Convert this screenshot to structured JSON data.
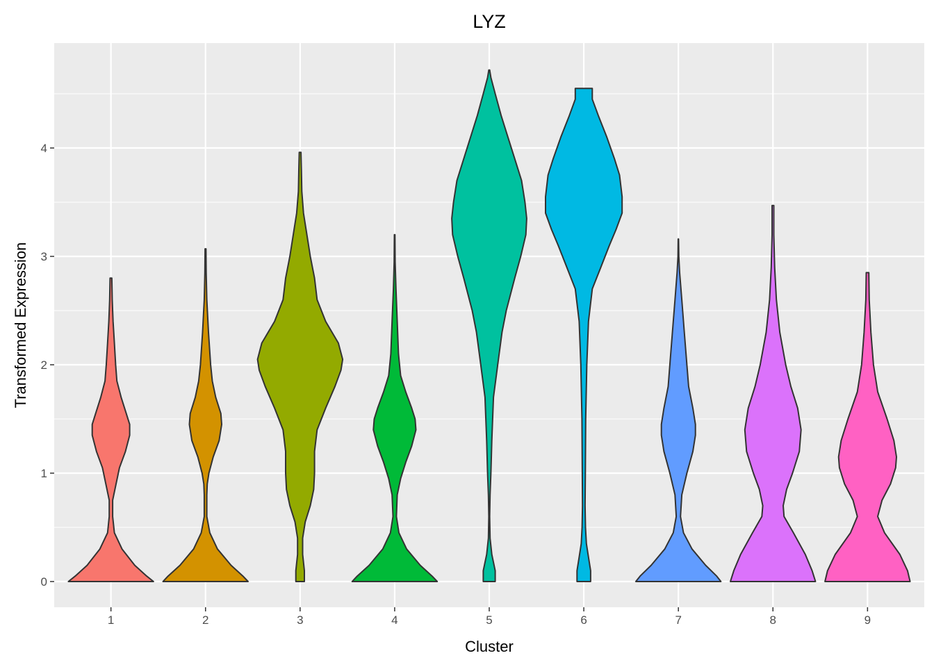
{
  "chart_data": {
    "type": "violin",
    "title": "LYZ",
    "xlabel": "Cluster",
    "ylabel": "Transformed Expression",
    "categories": [
      "1",
      "2",
      "3",
      "4",
      "5",
      "6",
      "7",
      "8",
      "9"
    ],
    "yticks": [
      0,
      1,
      2,
      3,
      4
    ],
    "ylim": [
      -0.24,
      5.0
    ],
    "grid": true,
    "legend": "none",
    "colors": [
      "#F8766D",
      "#D39200",
      "#93AA00",
      "#00BA38",
      "#00C19F",
      "#00B9E3",
      "#619CFF",
      "#DB72FB",
      "#FF61C3"
    ],
    "panel_background": "#EBEBEB",
    "gridline_color": "#FFFFFF",
    "outline_color": "#333333",
    "violins": [
      {
        "category": "1",
        "min": 0,
        "max": 2.8,
        "profile": [
          [
            0,
            0.5
          ],
          [
            0.05,
            0.42
          ],
          [
            0.15,
            0.28
          ],
          [
            0.3,
            0.13
          ],
          [
            0.45,
            0.04
          ],
          [
            0.6,
            0.02
          ],
          [
            0.75,
            0.02
          ],
          [
            0.9,
            0.06
          ],
          [
            1.05,
            0.1
          ],
          [
            1.2,
            0.17
          ],
          [
            1.35,
            0.22
          ],
          [
            1.45,
            0.22
          ],
          [
            1.55,
            0.18
          ],
          [
            1.7,
            0.12
          ],
          [
            1.85,
            0.07
          ],
          [
            2.0,
            0.055
          ],
          [
            2.2,
            0.04
          ],
          [
            2.4,
            0.025
          ],
          [
            2.6,
            0.015
          ],
          [
            2.8,
            0.01
          ]
        ]
      },
      {
        "category": "2",
        "min": 0,
        "max": 3.07,
        "profile": [
          [
            0,
            0.5
          ],
          [
            0.05,
            0.44
          ],
          [
            0.15,
            0.3
          ],
          [
            0.3,
            0.14
          ],
          [
            0.45,
            0.05
          ],
          [
            0.6,
            0.015
          ],
          [
            0.8,
            0.015
          ],
          [
            0.9,
            0.02
          ],
          [
            1.0,
            0.04
          ],
          [
            1.15,
            0.09
          ],
          [
            1.3,
            0.16
          ],
          [
            1.45,
            0.19
          ],
          [
            1.55,
            0.18
          ],
          [
            1.7,
            0.12
          ],
          [
            1.85,
            0.08
          ],
          [
            2.0,
            0.06
          ],
          [
            2.3,
            0.035
          ],
          [
            2.6,
            0.015
          ],
          [
            2.85,
            0.008
          ],
          [
            3.07,
            0.005
          ]
        ]
      },
      {
        "category": "3",
        "min": 0,
        "max": 3.96,
        "profile": [
          [
            0,
            0.05
          ],
          [
            0.1,
            0.05
          ],
          [
            0.25,
            0.03
          ],
          [
            0.4,
            0.03
          ],
          [
            0.55,
            0.06
          ],
          [
            0.7,
            0.12
          ],
          [
            0.85,
            0.16
          ],
          [
            1.0,
            0.17
          ],
          [
            1.2,
            0.17
          ],
          [
            1.4,
            0.2
          ],
          [
            1.6,
            0.3
          ],
          [
            1.8,
            0.41
          ],
          [
            1.95,
            0.48
          ],
          [
            2.05,
            0.5
          ],
          [
            2.2,
            0.45
          ],
          [
            2.4,
            0.3
          ],
          [
            2.6,
            0.2
          ],
          [
            2.8,
            0.17
          ],
          [
            3.0,
            0.12
          ],
          [
            3.2,
            0.08
          ],
          [
            3.4,
            0.04
          ],
          [
            3.6,
            0.02
          ],
          [
            3.8,
            0.015
          ],
          [
            3.96,
            0.01
          ]
        ]
      },
      {
        "category": "4",
        "min": 0,
        "max": 3.2,
        "profile": [
          [
            0,
            0.5
          ],
          [
            0.05,
            0.44
          ],
          [
            0.15,
            0.3
          ],
          [
            0.3,
            0.14
          ],
          [
            0.45,
            0.05
          ],
          [
            0.6,
            0.02
          ],
          [
            0.8,
            0.03
          ],
          [
            0.95,
            0.07
          ],
          [
            1.1,
            0.13
          ],
          [
            1.25,
            0.2
          ],
          [
            1.4,
            0.25
          ],
          [
            1.5,
            0.24
          ],
          [
            1.6,
            0.2
          ],
          [
            1.75,
            0.13
          ],
          [
            1.9,
            0.07
          ],
          [
            2.1,
            0.045
          ],
          [
            2.4,
            0.03
          ],
          [
            2.7,
            0.015
          ],
          [
            2.95,
            0.006
          ],
          [
            3.2,
            0.003
          ]
        ]
      },
      {
        "category": "5",
        "min": 0,
        "max": 4.72,
        "profile": [
          [
            0,
            0.07
          ],
          [
            0.1,
            0.07
          ],
          [
            0.25,
            0.03
          ],
          [
            0.4,
            0.01
          ],
          [
            0.6,
            0.005
          ],
          [
            0.8,
            0.01
          ],
          [
            1.0,
            0.02
          ],
          [
            1.3,
            0.03
          ],
          [
            1.5,
            0.04
          ],
          [
            1.7,
            0.05
          ],
          [
            2.0,
            0.1
          ],
          [
            2.3,
            0.15
          ],
          [
            2.5,
            0.2
          ],
          [
            2.8,
            0.3
          ],
          [
            3.0,
            0.37
          ],
          [
            3.2,
            0.43
          ],
          [
            3.35,
            0.44
          ],
          [
            3.5,
            0.42
          ],
          [
            3.7,
            0.38
          ],
          [
            3.9,
            0.3
          ],
          [
            4.1,
            0.22
          ],
          [
            4.3,
            0.14
          ],
          [
            4.5,
            0.07
          ],
          [
            4.65,
            0.02
          ],
          [
            4.72,
            0.005
          ]
        ]
      },
      {
        "category": "6",
        "min": 0,
        "max": 4.55,
        "profile": [
          [
            0,
            0.08
          ],
          [
            0.1,
            0.08
          ],
          [
            0.25,
            0.05
          ],
          [
            0.35,
            0.03
          ],
          [
            0.5,
            0.02
          ],
          [
            0.7,
            0.015
          ],
          [
            1.0,
            0.018
          ],
          [
            1.5,
            0.022
          ],
          [
            2.0,
            0.035
          ],
          [
            2.4,
            0.055
          ],
          [
            2.7,
            0.1
          ],
          [
            2.9,
            0.2
          ],
          [
            3.1,
            0.3
          ],
          [
            3.25,
            0.38
          ],
          [
            3.4,
            0.45
          ],
          [
            3.55,
            0.45
          ],
          [
            3.75,
            0.42
          ],
          [
            3.9,
            0.36
          ],
          [
            4.1,
            0.27
          ],
          [
            4.3,
            0.17
          ],
          [
            4.45,
            0.1
          ],
          [
            4.55,
            0.1
          ]
        ]
      },
      {
        "category": "7",
        "min": 0,
        "max": 3.16,
        "profile": [
          [
            0,
            0.5
          ],
          [
            0.05,
            0.45
          ],
          [
            0.15,
            0.32
          ],
          [
            0.3,
            0.16
          ],
          [
            0.45,
            0.06
          ],
          [
            0.6,
            0.025
          ],
          [
            0.8,
            0.04
          ],
          [
            1.0,
            0.1
          ],
          [
            1.2,
            0.17
          ],
          [
            1.35,
            0.2
          ],
          [
            1.45,
            0.2
          ],
          [
            1.6,
            0.17
          ],
          [
            1.8,
            0.12
          ],
          [
            2.0,
            0.1
          ],
          [
            2.3,
            0.07
          ],
          [
            2.6,
            0.04
          ],
          [
            2.85,
            0.015
          ],
          [
            3.0,
            0.005
          ],
          [
            3.16,
            0.002
          ]
        ]
      },
      {
        "category": "8",
        "min": 0,
        "max": 3.47,
        "profile": [
          [
            0,
            0.5
          ],
          [
            0.1,
            0.46
          ],
          [
            0.25,
            0.38
          ],
          [
            0.45,
            0.24
          ],
          [
            0.6,
            0.13
          ],
          [
            0.7,
            0.12
          ],
          [
            0.85,
            0.16
          ],
          [
            1.0,
            0.23
          ],
          [
            1.2,
            0.31
          ],
          [
            1.4,
            0.33
          ],
          [
            1.6,
            0.29
          ],
          [
            1.8,
            0.21
          ],
          [
            2.0,
            0.15
          ],
          [
            2.3,
            0.08
          ],
          [
            2.6,
            0.04
          ],
          [
            2.9,
            0.02
          ],
          [
            3.2,
            0.01
          ],
          [
            3.47,
            0.01
          ]
        ]
      },
      {
        "category": "9",
        "min": 0,
        "max": 2.85,
        "profile": [
          [
            0,
            0.5
          ],
          [
            0.1,
            0.47
          ],
          [
            0.25,
            0.38
          ],
          [
            0.45,
            0.2
          ],
          [
            0.6,
            0.12
          ],
          [
            0.75,
            0.17
          ],
          [
            0.9,
            0.27
          ],
          [
            1.05,
            0.33
          ],
          [
            1.15,
            0.34
          ],
          [
            1.3,
            0.31
          ],
          [
            1.5,
            0.23
          ],
          [
            1.75,
            0.12
          ],
          [
            2.0,
            0.07
          ],
          [
            2.3,
            0.04
          ],
          [
            2.6,
            0.02
          ],
          [
            2.85,
            0.015
          ]
        ]
      }
    ]
  }
}
